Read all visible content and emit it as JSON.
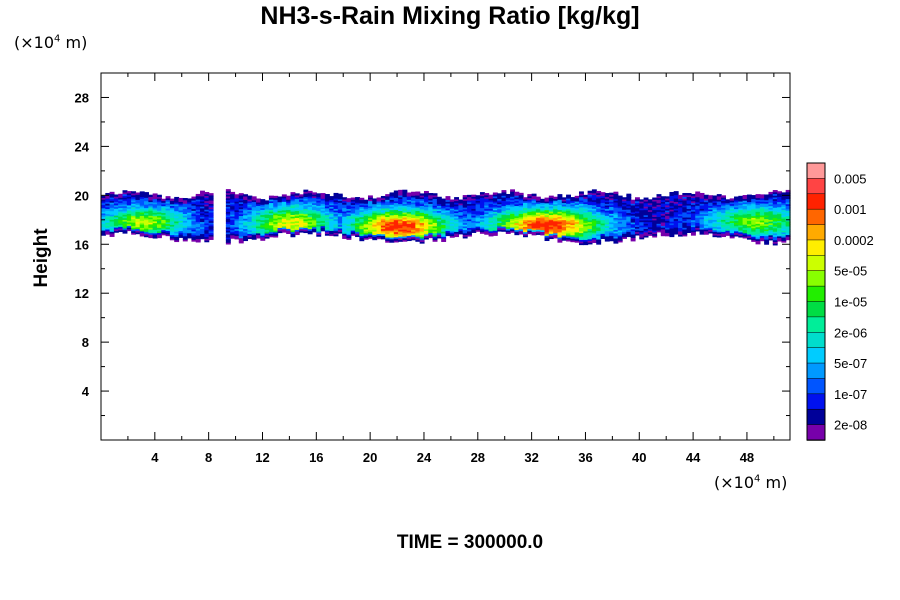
{
  "chart_data": {
    "type": "heatmap",
    "title": "NH3-s-Rain Mixing Ratio [kg/kg]",
    "ylabel": "Height",
    "xlabel": "",
    "y_unit": "(×10⁴ m)",
    "x_unit": "(×10⁴ m)",
    "unit_prefix": "(×10",
    "unit_exp": "4",
    "unit_suffix": " m)",
    "xlim": [
      0,
      51.2
    ],
    "ylim": [
      0,
      30
    ],
    "x_ticks": [
      4,
      8,
      12,
      16,
      20,
      24,
      28,
      32,
      36,
      40,
      44,
      48
    ],
    "y_ticks": [
      4,
      8,
      12,
      16,
      20,
      24,
      28
    ],
    "colorbar": {
      "labels": [
        "0.005",
        "0.001",
        "0.0002",
        "5e-05",
        "1e-05",
        "2e-06",
        "5e-07",
        "1e-07",
        "2e-08"
      ],
      "colors": [
        "#ff9999",
        "#ff4444",
        "#ff2200",
        "#ff6600",
        "#ffaa00",
        "#ffee00",
        "#ccff00",
        "#88ff00",
        "#22ee00",
        "#00dd44",
        "#00ee99",
        "#00ddcc",
        "#00ccff",
        "#0099ff",
        "#0055ff",
        "#0011ee",
        "#000099",
        "#7700aa"
      ]
    },
    "field": {
      "description_levels": "level index into colorbar.colors (0=top/highest)",
      "layer_bottom": 16.3,
      "layer_top": 20.2,
      "gaps_x": [
        [
          8.3,
          9.2
        ]
      ],
      "core_regions": [
        {
          "x": [
            19.5,
            24.5
          ],
          "y": [
            16.8,
            18.0
          ],
          "level": 3
        },
        {
          "x": [
            30,
            36
          ],
          "y": [
            16.9,
            18.1
          ],
          "level": 3
        },
        {
          "x": [
            1,
            5
          ],
          "y": [
            17.3,
            18.2
          ],
          "level": 8
        },
        {
          "x": [
            12,
            16
          ],
          "y": [
            17.0,
            18.3
          ],
          "level": 7
        },
        {
          "x": [
            46,
            51
          ],
          "y": [
            17.3,
            18.3
          ],
          "level": 9
        }
      ]
    }
  },
  "time_label": "TIME = 300000.0"
}
